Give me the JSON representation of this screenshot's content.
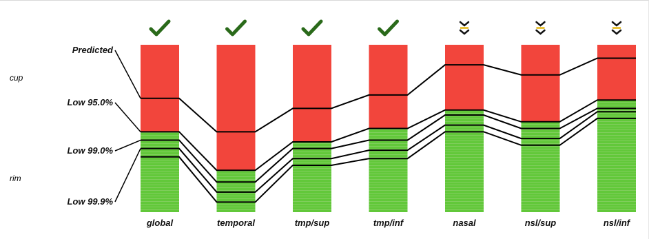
{
  "chart_data": {
    "type": "bar",
    "categories": [
      "global",
      "temporal",
      "tmp/sup",
      "tmp/inf",
      "nasal",
      "nsl/sup",
      "nsl/inf"
    ],
    "status_icons": [
      "checkmark-icon",
      "checkmark-icon",
      "checkmark-icon",
      "checkmark-icon",
      "chevron-down-icon",
      "chevron-down-icon",
      "chevron-down-icon"
    ],
    "region_labels": {
      "cup": "cup",
      "rim": "rim"
    },
    "region_colors": {
      "cup": "#f2453c",
      "rim": "#62c83a",
      "check": "#2a6a1a",
      "line": "#000000"
    },
    "ylim": [
      0,
      100
    ],
    "series": [
      {
        "name": "Predicted",
        "values": [
          68,
          48,
          62,
          70,
          88,
          82,
          92
        ]
      },
      {
        "name": "Low 95.0%",
        "values": [
          48,
          25,
          42,
          50,
          61,
          54,
          67
        ]
      },
      {
        "name": "Low 99.0%",
        "values": [
          43,
          18,
          38,
          43,
          58,
          50,
          62
        ]
      },
      {
        "name": "Low 99.9%",
        "values": [
          38,
          12,
          32,
          37,
          52,
          44,
          60
        ]
      },
      {
        "name": "",
        "values": [
          33,
          6,
          28,
          32,
          48,
          40,
          56
        ]
      }
    ],
    "boundary_series": 1
  }
}
